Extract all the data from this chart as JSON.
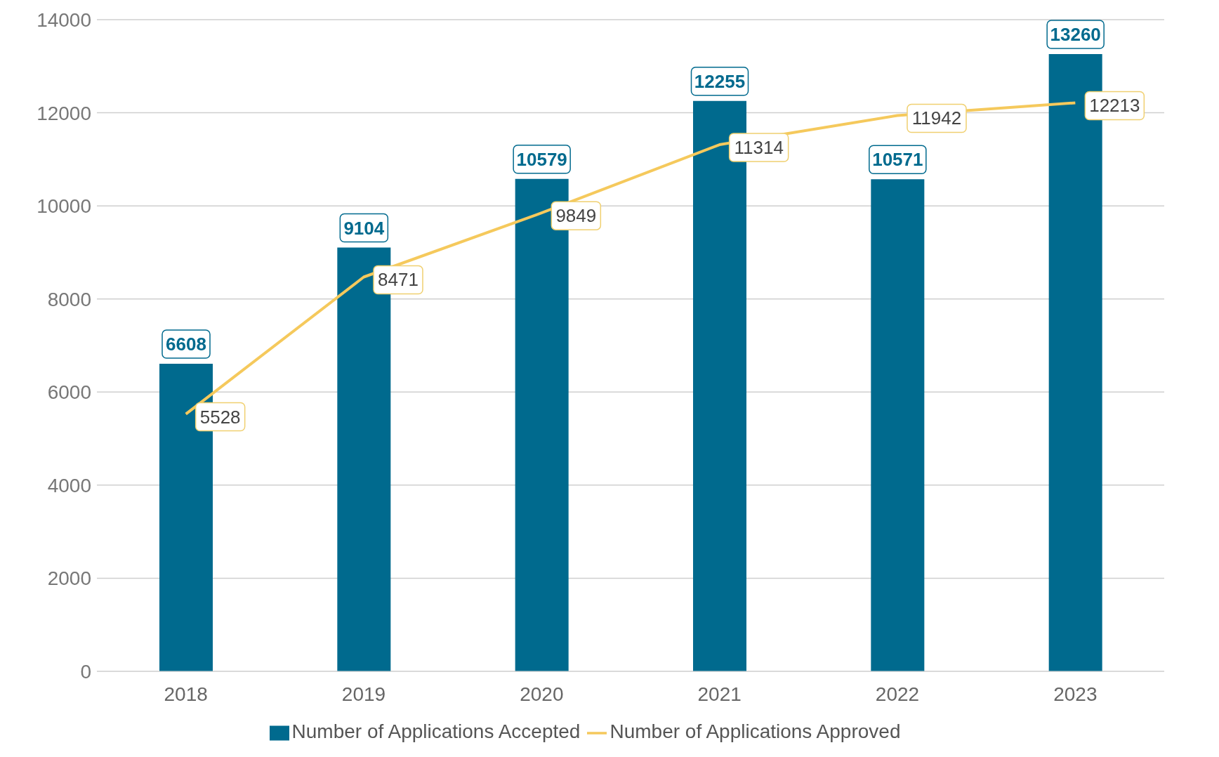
{
  "chart_data": {
    "type": "bar",
    "categories": [
      "2018",
      "2019",
      "2020",
      "2021",
      "2022",
      "2023"
    ],
    "series": [
      {
        "name": "Number of Applications Accepted",
        "color": "#006a8e",
        "values": [
          6608,
          9104,
          10579,
          12255,
          10571,
          13260
        ]
      },
      {
        "name": "Number of Applications Approved",
        "type": "line",
        "color": "#f5c95c",
        "values": [
          5528,
          8471,
          9849,
          11314,
          11942,
          12213
        ]
      }
    ],
    "ylim": [
      0,
      14000
    ],
    "yticks": [
      0,
      2000,
      4000,
      6000,
      8000,
      10000,
      12000,
      14000
    ],
    "grid": "y",
    "legend": "bottom",
    "data_labels": true,
    "marker": "none"
  }
}
